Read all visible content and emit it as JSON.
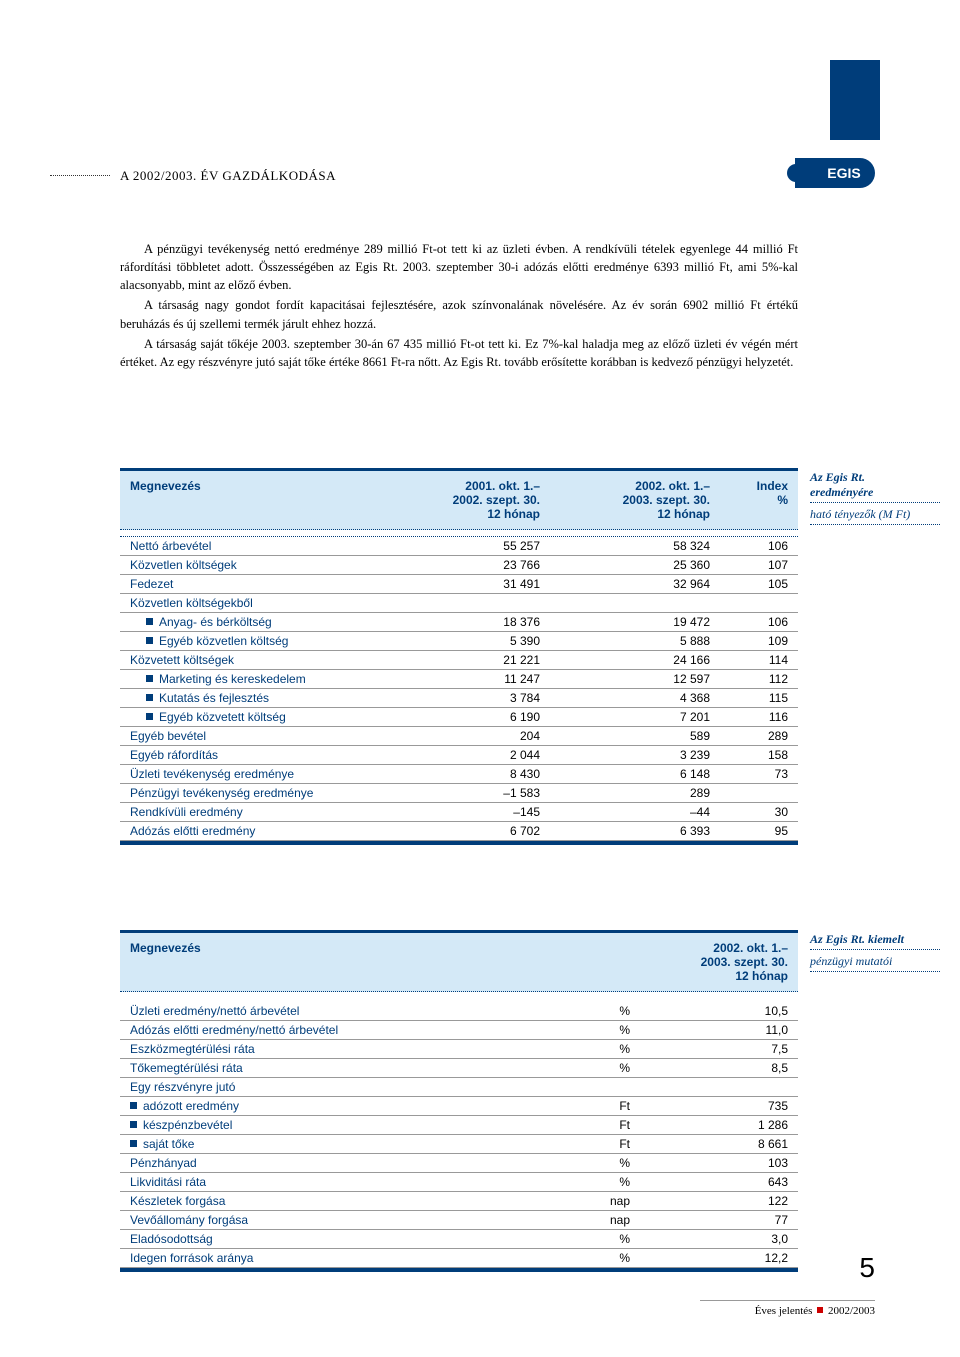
{
  "brand": {
    "logo_text": "EGIS",
    "logo_bg": "#003d7a",
    "logo_fg": "#ffffff"
  },
  "header": {
    "section_title": "A 2002/2003. ÉV GAZDÁLKODÁSA"
  },
  "body": {
    "p1": "A pénzügyi tevékenység nettó eredménye 289 millió Ft-ot tett ki az üzleti évben. A rendkívüli tételek egyenlege 44 millió Ft ráfordítási többletet adott. Összességében az Egis Rt. 2003. szeptember 30-i adózás előtti eredménye 6393 millió Ft, ami 5%-kal alacsonyabb, mint az előző évben.",
    "p2": "A társaság nagy gondot fordít kapacitásai fejlesztésére, azok színvonalának növelésére. Az év során 6902 millió Ft értékű beruházás és új szellemi termék járult ehhez hozzá.",
    "p3": "A társaság saját tőkéje 2003. szeptember 30-án 67 435 millió Ft-ot tett ki. Ez 7%-kal haladja meg az előző üzleti év végén mért értéket. Az egy részvényre jutó saját tőke értéke 8661 Ft-ra nőtt. Az Egis Rt. tovább erősítette korábban is kedvező pénzügyi helyzetét."
  },
  "table1": {
    "header": {
      "c1": "Megnevezés",
      "c2a": "2001. okt. 1.–",
      "c2b": "2002. szept. 30.",
      "c2c": "12 hónap",
      "c3a": "2002. okt. 1.–",
      "c3b": "2003. szept. 30.",
      "c3c": "12 hónap",
      "c4a": "Index",
      "c4b": "%"
    },
    "rows": [
      {
        "label": "Nettó árbevétel",
        "a": "55 257",
        "b": "58 324",
        "c": "106",
        "sub": false
      },
      {
        "label": "Közvetlen költségek",
        "a": "23 766",
        "b": "25 360",
        "c": "107",
        "sub": false
      },
      {
        "label": "Fedezet",
        "a": "31 491",
        "b": "32 964",
        "c": "105",
        "sub": false
      },
      {
        "label": "Közvetlen költségekből",
        "a": "",
        "b": "",
        "c": "",
        "sub": false
      },
      {
        "label": "Anyag- és bérköltség",
        "a": "18 376",
        "b": "19 472",
        "c": "106",
        "sub": true
      },
      {
        "label": "Egyéb közvetlen költség",
        "a": "5 390",
        "b": "5 888",
        "c": "109",
        "sub": true
      },
      {
        "label": "Közvetett költségek",
        "a": "21 221",
        "b": "24 166",
        "c": "114",
        "sub": false
      },
      {
        "label": "Marketing és kereskedelem",
        "a": "11 247",
        "b": "12 597",
        "c": "112",
        "sub": true
      },
      {
        "label": "Kutatás és fejlesztés",
        "a": "3 784",
        "b": "4 368",
        "c": "115",
        "sub": true
      },
      {
        "label": "Egyéb közvetett költség",
        "a": "6 190",
        "b": "7 201",
        "c": "116",
        "sub": true
      },
      {
        "label": "Egyéb bevétel",
        "a": "204",
        "b": "589",
        "c": "289",
        "sub": false
      },
      {
        "label": "Egyéb ráfordítás",
        "a": "2 044",
        "b": "3 239",
        "c": "158",
        "sub": false
      },
      {
        "label": "Üzleti tevékenység eredménye",
        "a": "8 430",
        "b": "6 148",
        "c": "73",
        "sub": false
      },
      {
        "label": "Pénzügyi tevékenység eredménye",
        "a": "–1 583",
        "b": "289",
        "c": "",
        "sub": false
      },
      {
        "label": "Rendkívüli eredmény",
        "a": "–145",
        "b": "–44",
        "c": "30",
        "sub": false
      },
      {
        "label": "Adózás előtti eredmény",
        "a": "6 702",
        "b": "6 393",
        "c": "95",
        "sub": false
      }
    ]
  },
  "side1": {
    "l1": "Az Egis Rt.",
    "l2": "eredményére",
    "l3": "ható tényezők (M Ft)"
  },
  "table2": {
    "header": {
      "c1": "Megnevezés",
      "c3a": "2002. okt. 1.–",
      "c3b": "2003. szept. 30.",
      "c3c": "12 hónap"
    },
    "rows": [
      {
        "label": "Üzleti eredmény/nettó árbevétel",
        "unit": "%",
        "val": "10,5",
        "sub": false
      },
      {
        "label": "Adózás előtti eredmény/nettó árbevétel",
        "unit": "%",
        "val": "11,0",
        "sub": false
      },
      {
        "label": "Eszközmegtérülési ráta",
        "unit": "%",
        "val": "7,5",
        "sub": false
      },
      {
        "label": "Tőkemegtérülési ráta",
        "unit": "%",
        "val": "8,5",
        "sub": false
      },
      {
        "label": "Egy részvényre jutó",
        "unit": "",
        "val": "",
        "sub": false
      },
      {
        "label": "adózott eredmény",
        "unit": "Ft",
        "val": "735",
        "sub": true
      },
      {
        "label": "készpénzbevétel",
        "unit": "Ft",
        "val": "1 286",
        "sub": true
      },
      {
        "label": "saját tőke",
        "unit": "Ft",
        "val": "8 661",
        "sub": true
      },
      {
        "label": "Pénzhányad",
        "unit": "%",
        "val": "103",
        "sub": false
      },
      {
        "label": "Likviditási ráta",
        "unit": "%",
        "val": "643",
        "sub": false
      },
      {
        "label": "Készletek forgása",
        "unit": "nap",
        "val": "122",
        "sub": false
      },
      {
        "label": "Vevőállomány forgása",
        "unit": "nap",
        "val": "77",
        "sub": false
      },
      {
        "label": "Eladósodottság",
        "unit": "%",
        "val": "3,0",
        "sub": false
      },
      {
        "label": "Idegen források aránya",
        "unit": "%",
        "val": "12,2",
        "sub": false
      }
    ]
  },
  "side2": {
    "l1": "Az Egis Rt. kiemelt",
    "l2": "pénzügyi mutatói"
  },
  "footer": {
    "page": "5",
    "text_left": "Éves jelentés",
    "text_right": "2002/2003"
  }
}
